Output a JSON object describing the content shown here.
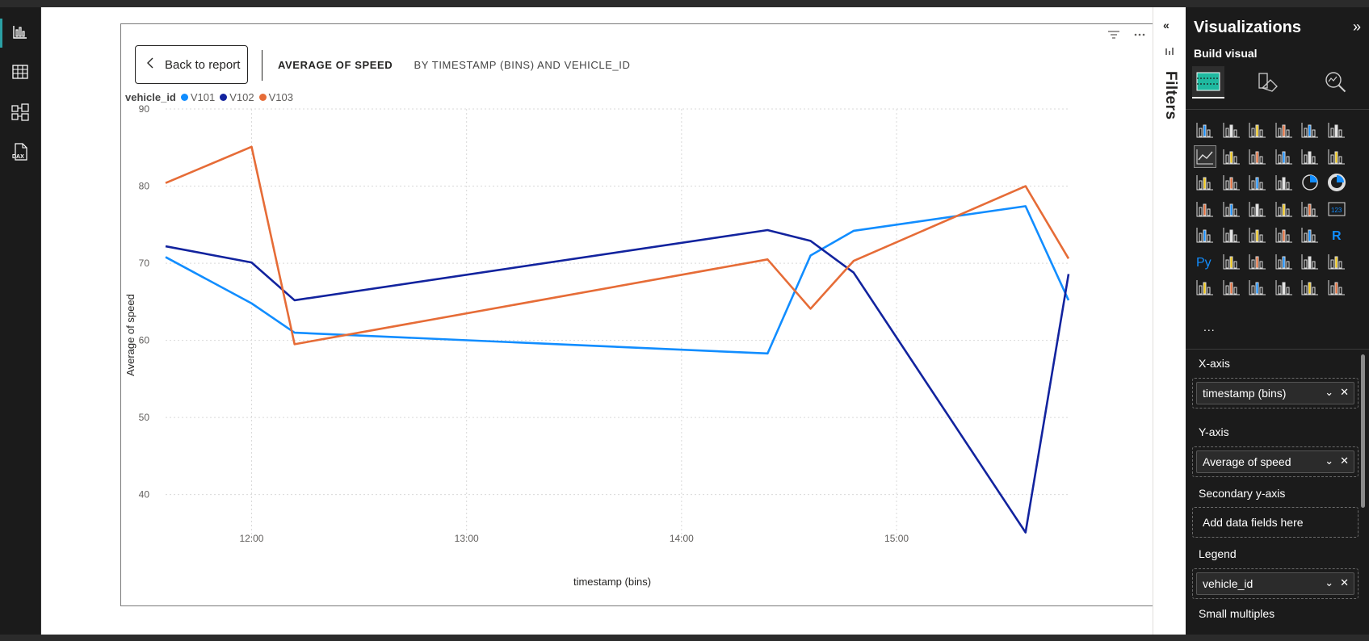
{
  "app": {
    "rail_items": [
      "report-view",
      "table-view",
      "model-view",
      "dax-query-view"
    ]
  },
  "visual": {
    "back_button_label": "Back to report",
    "title": "AVERAGE OF SPEED",
    "subtitle": "BY TIMESTAMP (BINS) AND VEHICLE_ID",
    "legend_title": "vehicle_id",
    "legend_items": [
      "V101",
      "V102",
      "V103"
    ]
  },
  "chart_data": {
    "type": "line",
    "title": "AVERAGE OF SPEED BY TIMESTAMP (BINS) AND VEHICLE_ID",
    "xlabel": "timestamp (bins)",
    "ylabel": "Average of speed",
    "x_ticks": [
      "12:00",
      "13:00",
      "14:00",
      "15:00"
    ],
    "y_ticks": [
      40,
      50,
      60,
      70,
      80,
      90
    ],
    "ylim": [
      34,
      90
    ],
    "xlim": [
      "11:36",
      "15:48"
    ],
    "grid": true,
    "legend": "top-left",
    "x": [
      "11:36",
      "12:00",
      "12:12",
      "14:24",
      "14:36",
      "14:48",
      "15:36",
      "15:48"
    ],
    "series": [
      {
        "name": "V101",
        "color": "#118dff",
        "values": [
          70.8,
          64.8,
          61.0,
          58.3,
          71.0,
          74.2,
          77.4,
          65.2
        ]
      },
      {
        "name": "V102",
        "color": "#12239e",
        "values": [
          72.2,
          70.1,
          65.2,
          74.3,
          72.9,
          68.8,
          35.1,
          68.6
        ]
      },
      {
        "name": "V103",
        "color": "#e66c37",
        "values": [
          80.4,
          85.1,
          59.5,
          70.5,
          64.1,
          70.3,
          80.0,
          70.6
        ]
      }
    ]
  },
  "filters": {
    "label": "Filters"
  },
  "viz_pane": {
    "title": "Visualizations",
    "build_label": "Build visual",
    "more": "...",
    "wells": {
      "x_axis": {
        "label": "X-axis",
        "field": "timestamp (bins)"
      },
      "y_axis": {
        "label": "Y-axis",
        "field": "Average of speed"
      },
      "secondary_y": {
        "label": "Secondary y-axis",
        "placeholder": "Add data fields here"
      },
      "legend": {
        "label": "Legend",
        "field": "vehicle_id"
      },
      "small_multiples": {
        "label": "Small multiples"
      }
    },
    "icon_rows": [
      [
        "stacked-bar-icon",
        "stacked-column-icon",
        "clustered-bar-icon",
        "clustered-column-icon",
        "100-bar-icon",
        "100-column-icon"
      ],
      [
        "line-chart-icon",
        "area-chart-icon",
        "stacked-area-icon",
        "100-area-icon",
        "line-column-icon",
        "line-clustered-column-icon"
      ],
      [
        "ribbon-chart-icon",
        "waterfall-icon",
        "funnel-icon",
        "scatter-icon",
        "pie-icon",
        "donut-icon"
      ],
      [
        "treemap-icon",
        "map-icon",
        "filled-map-icon",
        "azure-map-icon",
        "gauge-icon",
        "card-icon"
      ],
      [
        "multi-row-card-icon",
        "kpi-icon",
        "slicer-icon",
        "table-icon",
        "matrix-icon",
        "r-visual-icon"
      ],
      [
        "python-visual-icon",
        "key-influencers-icon",
        "decomposition-tree-icon",
        "qa-icon",
        "narrative-icon",
        "goals-icon"
      ],
      [
        "paginated-report-icon",
        "power-apps-icon",
        "power-automate-icon",
        "arcgis-icon",
        "power-bi-app-icon",
        "automate-icon"
      ]
    ]
  }
}
